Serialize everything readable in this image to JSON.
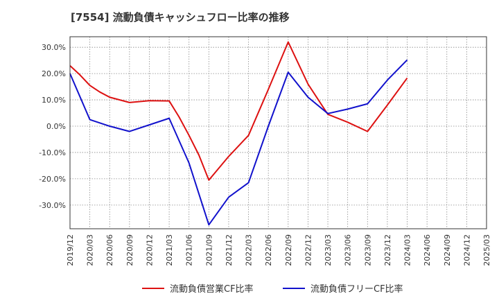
{
  "chart_data": {
    "type": "line",
    "title": "[7554]  流動負債キャッシュフロー比率の推移",
    "x": [
      "2019/12",
      "2020/03",
      "2020/06",
      "2020/09",
      "2020/12",
      "2021/03",
      "2021/06",
      "2021/09",
      "2021/12",
      "2022/03",
      "2022/06",
      "2022/09",
      "2022/12",
      "2023/03",
      "2023/06",
      "2023/09",
      "2023/12",
      "2024/03",
      "2024/06",
      "2024/09",
      "2024/12",
      "2025/03"
    ],
    "ylim": [
      -39,
      34
    ],
    "yticks": [
      30,
      20,
      10,
      0,
      -10,
      -20,
      -30
    ],
    "ytick_labels": [
      "30.0%",
      "20.0%",
      "10.0%",
      "0.0%",
      "-10.0%",
      "-20.0%",
      "-30.0%"
    ],
    "grid": true,
    "legend_position": "bottom",
    "series": [
      {
        "name": "流動負債営業CF比率",
        "color": "#dd1111",
        "x": [
          0,
          0.5,
          1,
          1.5,
          2,
          3,
          4,
          5,
          5.5,
          6,
          6.5,
          7,
          8,
          9,
          10,
          11,
          12,
          13,
          14,
          15,
          16,
          17
        ],
        "values": [
          23.0,
          19.5,
          15.5,
          13.0,
          11.0,
          9.0,
          9.7,
          9.6,
          3.5,
          -3.5,
          -11.0,
          -20.5,
          -11.5,
          -3.5,
          14.0,
          32.0,
          16.0,
          4.5,
          1.5,
          -2.0,
          8.0,
          18.3
        ]
      },
      {
        "name": "流動負債フリーCF比率",
        "color": "#1111cc",
        "x": [
          0,
          1,
          2,
          3,
          4,
          5,
          6,
          7,
          8,
          9,
          10,
          11,
          12,
          13,
          14,
          15,
          16,
          17
        ],
        "values": [
          20.0,
          2.5,
          0.0,
          -2.0,
          0.5,
          3.0,
          -14.0,
          -37.5,
          -27.0,
          -21.5,
          0.0,
          20.5,
          11.0,
          4.8,
          6.5,
          8.5,
          17.5,
          25.2
        ]
      }
    ]
  }
}
